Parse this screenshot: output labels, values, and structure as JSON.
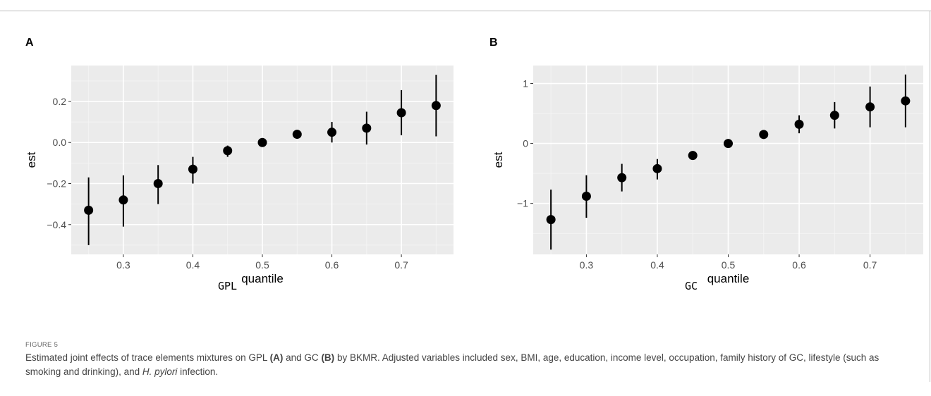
{
  "figure": {
    "label": "FIGURE 5",
    "caption_parts": [
      {
        "t": "Estimated joint effects of trace elements mixtures on GPL ",
        "s": "n"
      },
      {
        "t": "(A)",
        "s": "b"
      },
      {
        "t": " and GC ",
        "s": "n"
      },
      {
        "t": "(B)",
        "s": "b"
      },
      {
        "t": " by BKMR. Adjusted variables included sex, BMI, age, education, income level, occupation, family history of GC, lifestyle (such as smoking and drinking), and ",
        "s": "n"
      },
      {
        "t": "H. pylori",
        "s": "i"
      },
      {
        "t": " infection.",
        "s": "n"
      }
    ]
  },
  "chart_data": [
    {
      "panel": "A",
      "type": "scatter",
      "caption": "GPL",
      "xlabel": "quantile",
      "ylabel": "est",
      "xlim": [
        0.225,
        0.775
      ],
      "ylim": [
        -0.545,
        0.375
      ],
      "xticks": [
        0.3,
        0.4,
        0.5,
        0.6,
        0.7
      ],
      "xtick_labels": [
        "0.3",
        "0.4",
        "0.5",
        "0.6",
        "0.7"
      ],
      "yticks": [
        -0.4,
        -0.2,
        0.0,
        0.2
      ],
      "ytick_labels": [
        "−0.4",
        "−0.2",
        "0.0",
        "0.2"
      ],
      "grid": true,
      "x": [
        0.25,
        0.3,
        0.35,
        0.4,
        0.45,
        0.5,
        0.55,
        0.6,
        0.65,
        0.7,
        0.75
      ],
      "est": [
        -0.33,
        -0.28,
        -0.2,
        -0.13,
        -0.04,
        0.0,
        0.04,
        0.05,
        0.07,
        0.145,
        0.18
      ],
      "lower": [
        -0.5,
        -0.41,
        -0.3,
        -0.2,
        -0.07,
        0.0,
        0.03,
        0.0,
        -0.01,
        0.035,
        0.03
      ],
      "upper": [
        -0.17,
        -0.16,
        -0.11,
        -0.07,
        -0.015,
        0.0,
        0.05,
        0.1,
        0.15,
        0.255,
        0.33
      ]
    },
    {
      "panel": "B",
      "type": "scatter",
      "caption": "GC",
      "xlabel": "quantile",
      "ylabel": "est",
      "xlim": [
        0.225,
        0.775
      ],
      "ylim": [
        -1.85,
        1.3
      ],
      "xticks": [
        0.3,
        0.4,
        0.5,
        0.6,
        0.7
      ],
      "xtick_labels": [
        "0.3",
        "0.4",
        "0.5",
        "0.6",
        "0.7"
      ],
      "yticks": [
        -1,
        0,
        1
      ],
      "ytick_labels": [
        "−1",
        "0",
        "1"
      ],
      "grid": true,
      "x": [
        0.25,
        0.3,
        0.35,
        0.4,
        0.45,
        0.5,
        0.55,
        0.6,
        0.65,
        0.7,
        0.75
      ],
      "est": [
        -1.27,
        -0.88,
        -0.57,
        -0.42,
        -0.2,
        0.0,
        0.15,
        0.32,
        0.47,
        0.61,
        0.71
      ],
      "lower": [
        -1.77,
        -1.24,
        -0.8,
        -0.6,
        -0.25,
        0.0,
        0.1,
        0.17,
        0.25,
        0.27,
        0.27
      ],
      "upper": [
        -0.77,
        -0.53,
        -0.34,
        -0.26,
        -0.15,
        0.02,
        0.2,
        0.47,
        0.69,
        0.95,
        1.15
      ]
    }
  ]
}
